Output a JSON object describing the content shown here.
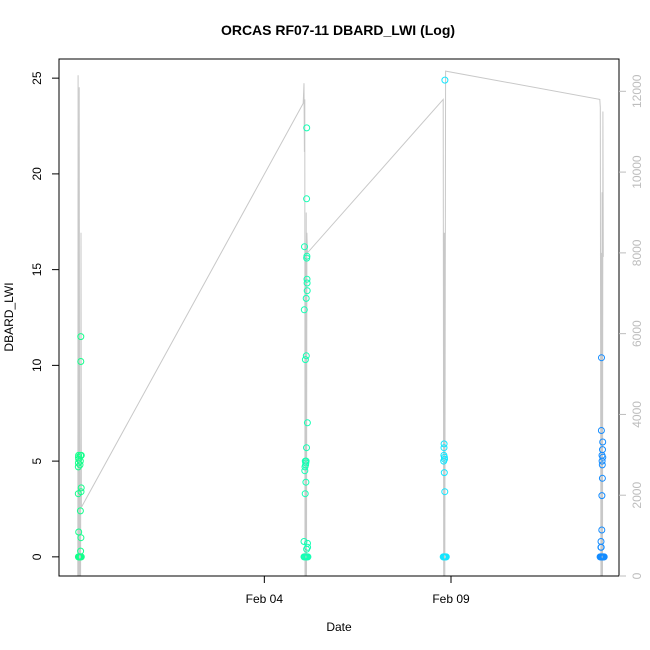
{
  "chart_data": {
    "type": "scatter",
    "title": "ORCAS RF07-11 DBARD_LWI (Log)",
    "xlabel": "Date",
    "ylabel": "DBARD_LWI",
    "xlim": [
      "2016-01-29T12:00",
      "2016-02-13T12:00"
    ],
    "ylim": [
      -1,
      26
    ],
    "y2lim": [
      0,
      12800
    ],
    "x_ticks": [
      {
        "date": "2016-02-04",
        "label": "Feb 04"
      },
      {
        "date": "2016-02-09",
        "label": "Feb 09"
      }
    ],
    "y_ticks": [
      0,
      5,
      10,
      15,
      20,
      25
    ],
    "y2_ticks": [
      0,
      2000,
      4000,
      6000,
      8000,
      10000,
      12000
    ],
    "grid": false,
    "series": [
      {
        "color": "#14ff8c",
        "points": [
          {
            "x": "2016-01-30T00:25",
            "y": 3.3
          },
          {
            "x": "2016-01-30T00:25",
            "y": 4.7
          },
          {
            "x": "2016-01-30T00:30",
            "y": 4.9
          },
          {
            "x": "2016-01-30T00:32",
            "y": 5.2
          },
          {
            "x": "2016-01-30T00:35",
            "y": 5.3
          },
          {
            "x": "2016-01-30T00:38",
            "y": 5.1
          },
          {
            "x": "2016-01-30T00:40",
            "y": 1.3
          },
          {
            "x": "2016-01-30T00:30",
            "y": 0.0
          },
          {
            "x": "2016-01-30T00:45",
            "y": 0.0
          },
          {
            "x": "2016-01-30T01:00",
            "y": 0.0
          },
          {
            "x": "2016-01-30T01:20",
            "y": 0.0
          },
          {
            "x": "2016-01-30T01:40",
            "y": 0.0
          },
          {
            "x": "2016-01-30T02:00",
            "y": 0.0
          },
          {
            "x": "2016-01-30T01:30",
            "y": 4.8
          },
          {
            "x": "2016-01-30T01:40",
            "y": 5.0
          },
          {
            "x": "2016-01-30T01:50",
            "y": 5.3
          },
          {
            "x": "2016-01-30T01:45",
            "y": 2.4
          },
          {
            "x": "2016-01-30T01:55",
            "y": 0.3
          },
          {
            "x": "2016-01-30T02:05",
            "y": 1.0
          },
          {
            "x": "2016-01-30T02:10",
            "y": 3.4
          },
          {
            "x": "2016-01-30T02:15",
            "y": 3.6
          },
          {
            "x": "2016-01-30T02:00",
            "y": 11.5
          },
          {
            "x": "2016-01-30T02:00",
            "y": 10.2
          },
          {
            "x": "2016-01-30T02:20",
            "y": 0.0
          },
          {
            "x": "2016-01-30T02:20",
            "y": 5.3
          }
        ]
      },
      {
        "color": "#14ffb4",
        "points": [
          {
            "x": "2016-02-05T01:30",
            "y": 0.8
          },
          {
            "x": "2016-02-05T01:40",
            "y": 12.9
          },
          {
            "x": "2016-02-05T01:50",
            "y": 16.2
          },
          {
            "x": "2016-02-05T02:00",
            "y": 4.5
          },
          {
            "x": "2016-02-05T02:10",
            "y": 4.7
          },
          {
            "x": "2016-02-05T02:20",
            "y": 5.0
          },
          {
            "x": "2016-02-05T02:15",
            "y": 3.3
          },
          {
            "x": "2016-02-05T02:25",
            "y": 10.3
          },
          {
            "x": "2016-02-05T02:30",
            "y": 4.8
          },
          {
            "x": "2016-02-05T02:40",
            "y": 4.9
          },
          {
            "x": "2016-02-05T02:50",
            "y": 5.0
          },
          {
            "x": "2016-02-05T02:45",
            "y": 3.9
          },
          {
            "x": "2016-02-05T02:55",
            "y": 13.5
          },
          {
            "x": "2016-02-05T03:00",
            "y": 10.5
          },
          {
            "x": "2016-02-05T03:05",
            "y": 5.7
          },
          {
            "x": "2016-02-05T03:10",
            "y": 0.4
          },
          {
            "x": "2016-02-05T03:15",
            "y": 15.6
          },
          {
            "x": "2016-02-05T03:20",
            "y": 15.7
          },
          {
            "x": "2016-02-05T03:25",
            "y": 14.5
          },
          {
            "x": "2016-02-05T03:30",
            "y": 14.3
          },
          {
            "x": "2016-02-05T03:35",
            "y": 13.9
          },
          {
            "x": "2016-02-05T03:40",
            "y": 7.0
          },
          {
            "x": "2016-02-05T03:45",
            "y": 0.7
          },
          {
            "x": "2016-02-05T03:50",
            "y": 0.5
          },
          {
            "x": "2016-02-05T03:10",
            "y": 18.7
          },
          {
            "x": "2016-02-05T03:15",
            "y": 22.4
          },
          {
            "x": "2016-02-05T01:30",
            "y": 0.0
          },
          {
            "x": "2016-02-05T02:00",
            "y": 0.0
          },
          {
            "x": "2016-02-05T02:30",
            "y": 0.0
          },
          {
            "x": "2016-02-05T03:00",
            "y": 0.0
          },
          {
            "x": "2016-02-05T03:30",
            "y": 0.0
          },
          {
            "x": "2016-02-05T04:00",
            "y": 0.0
          }
        ]
      },
      {
        "color": "#14e6ff",
        "points": [
          {
            "x": "2016-02-08T19:20",
            "y": 5.0
          },
          {
            "x": "2016-02-08T19:25",
            "y": 5.3
          },
          {
            "x": "2016-02-08T19:30",
            "y": 5.7
          },
          {
            "x": "2016-02-08T19:35",
            "y": 5.9
          },
          {
            "x": "2016-02-08T19:40",
            "y": 4.4
          },
          {
            "x": "2016-02-08T19:45",
            "y": 5.2
          },
          {
            "x": "2016-02-08T19:50",
            "y": 5.1
          },
          {
            "x": "2016-02-08T20:00",
            "y": 3.4
          },
          {
            "x": "2016-02-08T20:05",
            "y": 24.9
          },
          {
            "x": "2016-02-08T19:00",
            "y": 0.0
          },
          {
            "x": "2016-02-08T19:20",
            "y": 0.0
          },
          {
            "x": "2016-02-08T19:40",
            "y": 0.0
          },
          {
            "x": "2016-02-08T20:00",
            "y": 0.0
          },
          {
            "x": "2016-02-08T20:20",
            "y": 0.0
          },
          {
            "x": "2016-02-08T20:40",
            "y": 0.0
          },
          {
            "x": "2016-02-08T21:00",
            "y": 0.0
          }
        ]
      },
      {
        "color": "#148cff",
        "points": [
          {
            "x": "2016-02-12T23:50",
            "y": 0.0
          },
          {
            "x": "2016-02-13T00:10",
            "y": 0.0
          },
          {
            "x": "2016-02-13T00:30",
            "y": 0.0
          },
          {
            "x": "2016-02-13T00:50",
            "y": 0.0
          },
          {
            "x": "2016-02-13T01:10",
            "y": 0.0
          },
          {
            "x": "2016-02-13T01:30",
            "y": 0.0
          },
          {
            "x": "2016-02-13T01:50",
            "y": 0.0
          },
          {
            "x": "2016-02-13T02:10",
            "y": 0.0
          },
          {
            "x": "2016-02-13T02:30",
            "y": 0.0
          },
          {
            "x": "2016-02-13T00:20",
            "y": 0.5
          },
          {
            "x": "2016-02-13T00:25",
            "y": 0.8
          },
          {
            "x": "2016-02-13T00:35",
            "y": 0.5
          },
          {
            "x": "2016-02-13T00:40",
            "y": 6.6
          },
          {
            "x": "2016-02-13T00:45",
            "y": 10.4
          },
          {
            "x": "2016-02-13T00:55",
            "y": 1.4
          },
          {
            "x": "2016-02-13T01:00",
            "y": 3.2
          },
          {
            "x": "2016-02-13T01:05",
            "y": 5.3
          },
          {
            "x": "2016-02-13T01:10",
            "y": 5.0
          },
          {
            "x": "2016-02-13T01:15",
            "y": 4.8
          },
          {
            "x": "2016-02-13T01:20",
            "y": 4.1
          },
          {
            "x": "2016-02-13T01:25",
            "y": 5.6
          },
          {
            "x": "2016-02-13T01:30",
            "y": 6.0
          },
          {
            "x": "2016-02-13T01:35",
            "y": 5.2
          }
        ]
      }
    ],
    "secondary_series": {
      "color": "#c8c8c8",
      "axis": "right",
      "points": [
        [
          "2016-01-30T00:05",
          0
        ],
        [
          "2016-01-30T00:15",
          12400
        ],
        [
          "2016-01-30T00:25",
          0
        ],
        [
          "2016-01-30T00:45",
          0
        ],
        [
          "2016-01-30T01:00",
          12100
        ],
        [
          "2016-01-30T01:20",
          0
        ],
        [
          "2016-01-30T01:55",
          0
        ],
        [
          "2016-01-30T02:10",
          8500
        ],
        [
          "2016-01-30T02:25",
          1700
        ],
        [
          "2016-02-05T01:00",
          11700
        ],
        [
          "2016-02-05T01:30",
          12200
        ],
        [
          "2016-02-05T01:45",
          10500
        ],
        [
          "2016-02-05T02:00",
          11800
        ],
        [
          "2016-02-05T02:10",
          0
        ],
        [
          "2016-02-05T02:25",
          8200
        ],
        [
          "2016-02-05T02:40",
          0
        ],
        [
          "2016-02-05T02:55",
          9000
        ],
        [
          "2016-02-05T03:05",
          0
        ],
        [
          "2016-02-05T03:20",
          8500
        ],
        [
          "2016-02-05T03:40",
          8000
        ],
        [
          "2016-02-08T19:00",
          11800
        ],
        [
          "2016-02-08T19:20",
          0
        ],
        [
          "2016-02-08T19:40",
          8500
        ],
        [
          "2016-02-08T20:00",
          0
        ],
        [
          "2016-02-08T20:30",
          12500
        ],
        [
          "2016-02-12T23:40",
          11800
        ],
        [
          "2016-02-13T00:00",
          11600
        ],
        [
          "2016-02-13T00:20",
          0
        ],
        [
          "2016-02-13T00:40",
          8000
        ],
        [
          "2016-02-13T00:55",
          0
        ],
        [
          "2016-02-13T01:10",
          9500
        ],
        [
          "2016-02-13T01:25",
          0
        ],
        [
          "2016-02-13T01:40",
          11500
        ],
        [
          "2016-02-13T01:55",
          7900
        ]
      ]
    }
  }
}
